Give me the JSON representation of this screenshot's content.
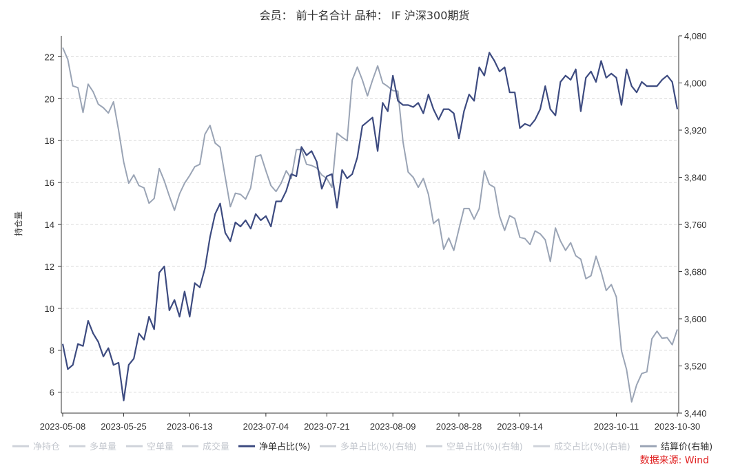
{
  "chart_data": {
    "type": "line",
    "title": "会员： 前十名合计 品种： IF 沪深300期货",
    "ylabel": "持仓量",
    "source": "数据来源: Wind",
    "x_ticks": [
      "2023-05-08",
      "2023-05-25",
      "2023-06-13",
      "2023-07-04",
      "2023-07-21",
      "2023-08-09",
      "2023-08-28",
      "2023-09-14",
      "2023-10-11",
      "2023-10-30"
    ],
    "ylim": [
      5,
      23
    ],
    "y_ticks": [
      6,
      8,
      10,
      12,
      14,
      16,
      18,
      20,
      22
    ],
    "y2lim": [
      3440,
      4080
    ],
    "y2_ticks": [
      "3,440",
      "3,520",
      "3,600",
      "3,680",
      "3,760",
      "3,840",
      "3,920",
      "4,000",
      "4,080"
    ],
    "grid": true,
    "legend_position": "bottom",
    "legend": [
      {
        "label": "净持仓",
        "active": false
      },
      {
        "label": "多单量",
        "active": false
      },
      {
        "label": "空单量",
        "active": false
      },
      {
        "label": "成交量",
        "active": false
      },
      {
        "label": "净单占比(%)",
        "active": true
      },
      {
        "label": "多单占比(%)(右轴)",
        "active": false
      },
      {
        "label": "空单占比(%)(右轴)",
        "active": false
      },
      {
        "label": "成交占比(%)(右轴)",
        "active": false
      },
      {
        "label": "结算价(右轴)",
        "active": true
      }
    ],
    "series": [
      {
        "name": "净单占比(%)",
        "axis": "left",
        "color": "#3d4b80",
        "values": [
          8.3,
          7.1,
          7.3,
          8.3,
          8.2,
          9.4,
          8.8,
          8.4,
          7.7,
          8.1,
          7.3,
          7.4,
          5.6,
          7.3,
          7.6,
          8.8,
          8.5,
          9.6,
          9.0,
          11.7,
          12.0,
          9.9,
          10.4,
          9.6,
          10.8,
          9.6,
          11.2,
          11.0,
          11.9,
          13.4,
          14.5,
          15.0,
          13.6,
          13.2,
          14.1,
          13.9,
          14.2,
          13.8,
          14.5,
          14.2,
          14.4,
          13.9,
          15.1,
          15.1,
          15.6,
          16.4,
          16.3,
          17.7,
          17.3,
          17.5,
          17.0,
          15.7,
          16.3,
          16.4,
          14.8,
          16.6,
          16.2,
          16.4,
          17.2,
          18.7,
          18.9,
          19.1,
          17.5,
          19.8,
          19.4,
          21.1,
          19.9,
          19.7,
          19.7,
          19.6,
          19.8,
          19.3,
          20.2,
          19.5,
          19.0,
          19.5,
          19.5,
          19.3,
          18.1,
          19.4,
          20.2,
          19.9,
          21.5,
          21.1,
          22.2,
          21.8,
          21.3,
          21.5,
          20.3,
          20.3,
          18.6,
          18.8,
          18.7,
          19.0,
          19.5,
          20.6,
          19.5,
          19.2,
          20.8,
          21.1,
          20.9,
          21.4,
          19.4,
          21.0,
          21.3,
          20.8,
          21.8,
          21.0,
          21.2,
          21.0,
          19.7,
          21.4,
          20.6,
          20.3,
          20.8,
          20.6,
          20.6,
          20.6,
          20.9,
          21.1,
          20.8,
          19.5
        ]
      },
      {
        "name": "结算价(右轴)",
        "axis": "right",
        "color": "#9aa4b5",
        "values": [
          4060,
          4040,
          3995,
          3992,
          3950,
          3998,
          3985,
          3964,
          3958,
          3949,
          3968,
          3920,
          3866,
          3830,
          3844,
          3826,
          3822,
          3796,
          3804,
          3855,
          3834,
          3808,
          3784,
          3812,
          3830,
          3843,
          3858,
          3862,
          3913,
          3928,
          3898,
          3891,
          3840,
          3790,
          3813,
          3811,
          3803,
          3822,
          3875,
          3878,
          3851,
          3826,
          3816,
          3830,
          3851,
          3838,
          3887,
          3887,
          3862,
          3860,
          3856,
          3844,
          3838,
          3823,
          3915,
          3908,
          3902,
          4005,
          4027,
          4005,
          3978,
          4005,
          4029,
          4000,
          3994,
          3987,
          3986,
          3900,
          3849,
          3840,
          3823,
          3838,
          3811,
          3762,
          3769,
          3718,
          3737,
          3716,
          3752,
          3787,
          3787,
          3769,
          3787,
          3851,
          3828,
          3823,
          3774,
          3750,
          3775,
          3770,
          3738,
          3736,
          3726,
          3749,
          3744,
          3734,
          3697,
          3754,
          3732,
          3716,
          3729,
          3707,
          3701,
          3668,
          3673,
          3706,
          3680,
          3648,
          3658,
          3637,
          3546,
          3514,
          3459,
          3488,
          3507,
          3510,
          3566,
          3579,
          3567,
          3568,
          3556,
          3582
        ]
      }
    ]
  }
}
